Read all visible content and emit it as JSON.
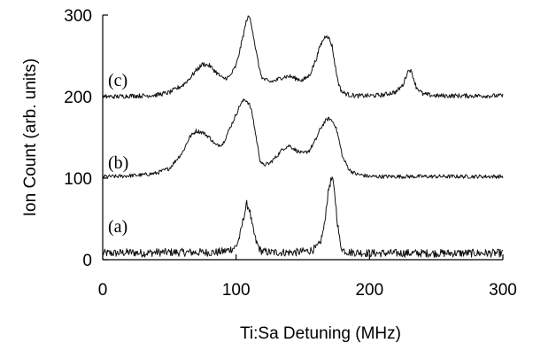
{
  "chart_data": {
    "type": "line",
    "title": "",
    "xlabel": "Ti:Sa Detuning (MHz)",
    "ylabel": "Ion Count (arb. units)",
    "xlim": [
      0,
      300
    ],
    "ylim": [
      0,
      300
    ],
    "x_ticks": [
      0,
      100,
      200,
      300
    ],
    "y_ticks": [
      0,
      100,
      200,
      300
    ],
    "grid": false,
    "legend": "none",
    "x": [
      0,
      10,
      20,
      30,
      40,
      50,
      60,
      65,
      70,
      75,
      80,
      85,
      90,
      95,
      100,
      103,
      106,
      108,
      110,
      112,
      115,
      118,
      120,
      125,
      130,
      135,
      140,
      145,
      150,
      155,
      160,
      163,
      166,
      168,
      170,
      172,
      174,
      176,
      178,
      180,
      185,
      190,
      200,
      210,
      220,
      225,
      228,
      230,
      232,
      235,
      240,
      250,
      260,
      270,
      280,
      290,
      300
    ],
    "series": [
      {
        "name": "(a)",
        "values": [
          8,
          8,
          9,
          8,
          9,
          9,
          9,
          9,
          9,
          9,
          9,
          9,
          10,
          12,
          16,
          30,
          55,
          68,
          62,
          42,
          22,
          12,
          10,
          9,
          9,
          9,
          9,
          9,
          10,
          11,
          14,
          20,
          40,
          70,
          92,
          100,
          80,
          45,
          20,
          12,
          9,
          9,
          8,
          8,
          8,
          8,
          8,
          8,
          8,
          8,
          8,
          8,
          8,
          8,
          8,
          8,
          8
        ]
      },
      {
        "name": "(b)",
        "values": [
          102,
          102,
          103,
          104,
          106,
          112,
          132,
          150,
          158,
          156,
          150,
          140,
          142,
          160,
          178,
          190,
          196,
          195,
          190,
          180,
          150,
          122,
          116,
          118,
          126,
          136,
          140,
          134,
          130,
          134,
          148,
          160,
          168,
          172,
          173,
          170,
          166,
          155,
          140,
          125,
          110,
          105,
          102,
          102,
          102,
          102,
          102,
          102,
          102,
          102,
          102,
          102,
          102,
          102,
          102,
          102,
          102
        ]
      },
      {
        "name": "(c)",
        "values": [
          200,
          200,
          201,
          201,
          202,
          205,
          214,
          222,
          232,
          240,
          238,
          230,
          222,
          224,
          238,
          258,
          280,
          295,
          298,
          285,
          255,
          230,
          222,
          218,
          220,
          224,
          225,
          222,
          220,
          226,
          246,
          262,
          272,
          276,
          270,
          262,
          240,
          222,
          210,
          205,
          202,
          201,
          201,
          202,
          206,
          214,
          228,
          234,
          228,
          212,
          203,
          201,
          201,
          201,
          201,
          201,
          201
        ]
      }
    ],
    "panel_labels": [
      "(a)",
      "(b)",
      "(c)"
    ]
  }
}
